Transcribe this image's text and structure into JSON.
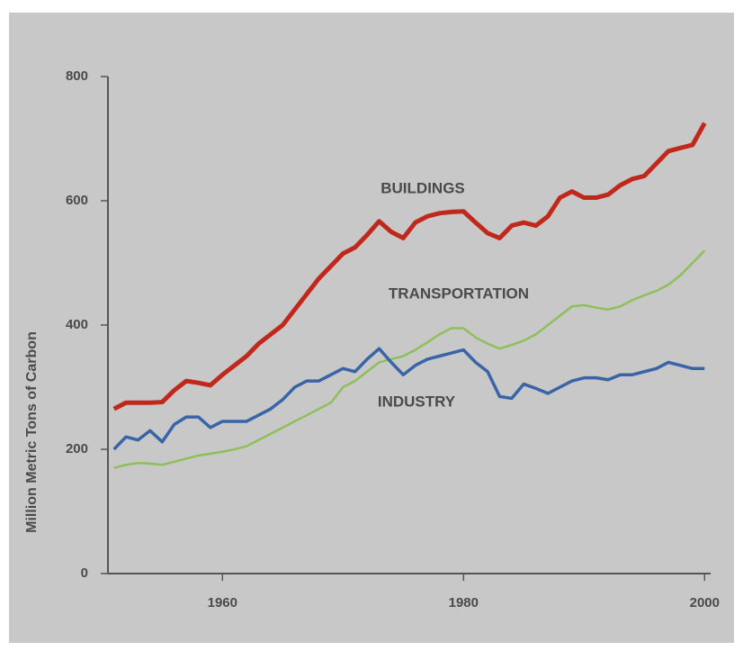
{
  "chart_data": {
    "type": "line",
    "ylabel": "Million Metric Tons of Carbon",
    "x": [
      1951,
      1952,
      1953,
      1954,
      1955,
      1956,
      1957,
      1958,
      1959,
      1960,
      1961,
      1962,
      1963,
      1964,
      1965,
      1966,
      1967,
      1968,
      1969,
      1970,
      1971,
      1972,
      1973,
      1974,
      1975,
      1976,
      1977,
      1978,
      1979,
      1980,
      1981,
      1982,
      1983,
      1984,
      1985,
      1986,
      1987,
      1988,
      1989,
      1990,
      1991,
      1992,
      1993,
      1994,
      1995,
      1996,
      1997,
      1998,
      1999,
      2000
    ],
    "series": [
      {
        "name": "BUILDINGS",
        "color": "#c0281c",
        "values": [
          265,
          275,
          275,
          275,
          276,
          295,
          310,
          307,
          303,
          320,
          335,
          350,
          370,
          385,
          400,
          425,
          450,
          475,
          495,
          515,
          525,
          545,
          567,
          550,
          540,
          565,
          575,
          580,
          582,
          583,
          565,
          548,
          540,
          560,
          565,
          560,
          575,
          605,
          615,
          605,
          605,
          610,
          625,
          635,
          640,
          660,
          680,
          685,
          690,
          725
        ]
      },
      {
        "name": "TRANSPORTATION",
        "color": "#8fbf5a",
        "values": [
          170,
          175,
          178,
          177,
          175,
          180,
          185,
          190,
          193,
          196,
          200,
          205,
          215,
          225,
          235,
          245,
          255,
          265,
          275,
          300,
          310,
          325,
          340,
          345,
          350,
          360,
          372,
          385,
          395,
          395,
          380,
          370,
          362,
          368,
          375,
          385,
          400,
          415,
          430,
          432,
          428,
          425,
          430,
          440,
          448,
          455,
          465,
          480,
          500,
          520
        ]
      },
      {
        "name": "INDUSTRY",
        "color": "#3a64a8",
        "values": [
          200,
          220,
          215,
          230,
          212,
          240,
          252,
          252,
          235,
          245,
          245,
          245,
          255,
          265,
          280,
          300,
          310,
          310,
          320,
          330,
          325,
          345,
          362,
          340,
          320,
          335,
          345,
          350,
          355,
          360,
          340,
          325,
          285,
          282,
          305,
          298,
          290,
          300,
          310,
          315,
          315,
          312,
          320,
          320,
          325,
          330,
          340,
          335,
          330,
          330
        ]
      }
    ],
    "xlim": [
      1950.5,
      2000.5
    ],
    "xticks": [
      1960,
      1980,
      2000
    ],
    "ylim": [
      0,
      800
    ],
    "yticks": [
      0,
      200,
      400,
      600,
      800
    ]
  }
}
